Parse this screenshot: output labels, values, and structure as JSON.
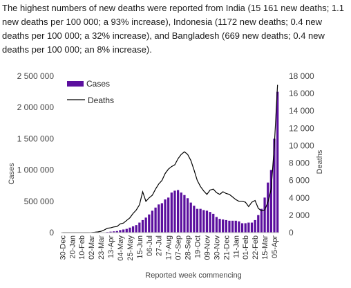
{
  "intro_text": "The highest numbers of new deaths were reported from India (15 161 new deaths; 1.1 new deaths per 100 000; a 93% increase), Indonesia (1172 new deaths; 0.4 new deaths per 100 000; a 32% increase), and Bangladesh (669 new deaths; 0.4 new deaths per 100 000; an 8% increase).",
  "chart_data": {
    "type": "bar",
    "xlabel": "Reported week commencing",
    "ylabel": "Cases",
    "y2label": "Deaths",
    "ylim": [
      0,
      2500000
    ],
    "y2lim": [
      0,
      18000
    ],
    "yticks": [
      "0",
      "500 000",
      "1 000 000",
      "1 500 000",
      "2 000 000",
      "2 500 000"
    ],
    "y2ticks": [
      "0",
      "2 000",
      "4 000",
      "6 000",
      "8 000",
      "10 000",
      "12 000",
      "14 000",
      "16 000",
      "18 000"
    ],
    "xtick_labels": [
      "30-Dec",
      "20-Jan",
      "10-Feb",
      "02-Mar",
      "23-Mar",
      "13-Apr",
      "04-May",
      "25-May",
      "15-Jun",
      "06-Jul",
      "27-Jul",
      "17-Aug",
      "07-Sep",
      "28-Sep",
      "19-Oct",
      "09-Nov",
      "30-Nov",
      "21-Dec",
      "11-Jan",
      "01-Feb",
      "22-Feb",
      "15-Mar",
      "05-Apr"
    ],
    "legend": {
      "position": "top-left",
      "entries": [
        "Cases",
        "Deaths"
      ]
    },
    "colors": {
      "cases": "#5b0f9e",
      "deaths": "#000000"
    },
    "series": [
      {
        "name": "Cases",
        "type": "bar",
        "axis": "left",
        "values": [
          0,
          0,
          0,
          0,
          0,
          0,
          0,
          0,
          0,
          0,
          0,
          1000,
          2000,
          5000,
          10000,
          15000,
          20000,
          25000,
          40000,
          50000,
          60000,
          80000,
          100000,
          120000,
          160000,
          200000,
          240000,
          290000,
          350000,
          400000,
          450000,
          470000,
          530000,
          560000,
          640000,
          670000,
          680000,
          640000,
          600000,
          550000,
          480000,
          430000,
          380000,
          380000,
          360000,
          350000,
          330000,
          300000,
          250000,
          220000,
          210000,
          200000,
          190000,
          190000,
          190000,
          180000,
          150000,
          150000,
          160000,
          160000,
          200000,
          280000,
          380000,
          560000,
          800000,
          1000000,
          1500000,
          2250000
        ]
      },
      {
        "name": "Deaths",
        "type": "line",
        "axis": "right",
        "values": [
          0,
          0,
          0,
          0,
          0,
          0,
          0,
          0,
          0,
          10,
          40,
          80,
          150,
          300,
          500,
          550,
          650,
          700,
          1000,
          1100,
          1400,
          1700,
          2200,
          2600,
          3200,
          4700,
          3600,
          4000,
          4300,
          5000,
          5600,
          6000,
          6800,
          7300,
          7600,
          7800,
          8500,
          9000,
          9300,
          9000,
          8300,
          7200,
          6000,
          5300,
          4800,
          4400,
          4900,
          5000,
          4600,
          4400,
          4700,
          4500,
          4400,
          4100,
          3800,
          3600,
          3600,
          3500,
          3000,
          3500,
          3700,
          2800,
          2500,
          2600,
          3500,
          5000,
          10000,
          17000
        ]
      }
    ]
  }
}
